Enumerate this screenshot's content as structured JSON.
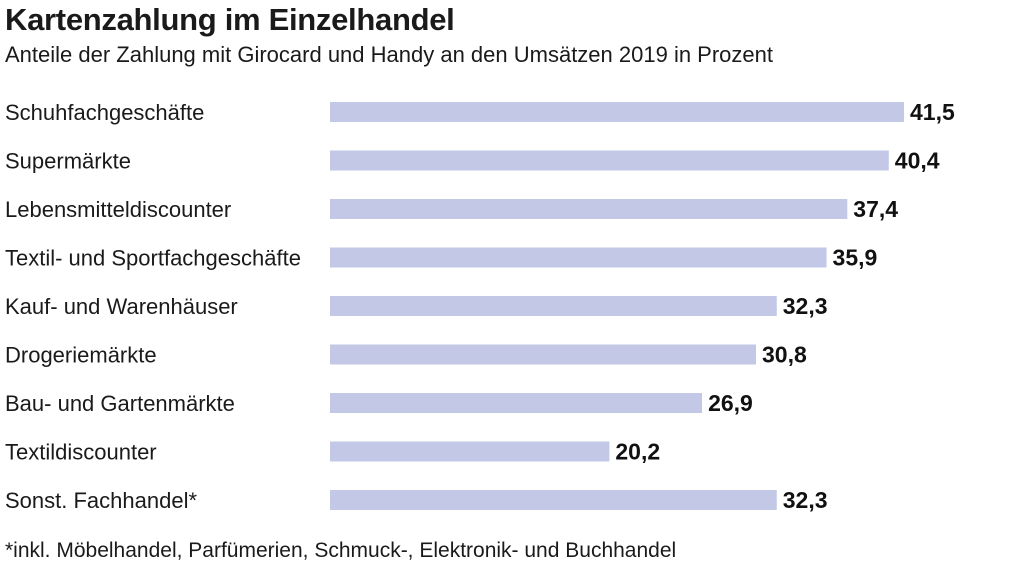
{
  "chart_data": {
    "type": "bar",
    "orientation": "horizontal",
    "title": "Kartenzahlung im Einzelhandel",
    "subtitle": "Anteile der Zahlung mit Girocard und Handy an den Umsätzen 2019 in Prozent",
    "categories": [
      "Schuhfachgeschäfte",
      "Supermärkte",
      "Lebensmitteldiscounter",
      "Textil- und Sportfachgeschäfte",
      "Kauf- und Warenhäuser",
      "Drogeriemärkte",
      "Bau- und Gartenmärkte",
      "Textildiscounter",
      "Sonst. Fachhandel*"
    ],
    "values": [
      41.5,
      40.4,
      37.4,
      35.9,
      32.3,
      30.8,
      26.9,
      20.2,
      32.3
    ],
    "value_labels": [
      "41,5",
      "40,4",
      "37,4",
      "35,9",
      "32,3",
      "30,8",
      "26,9",
      "20,2",
      "32,3"
    ],
    "xlim": [
      0,
      41.5
    ],
    "grid": false,
    "bar_color": "#c2c8e6",
    "footnote": "*inkl. Möbelhandel, Parfümerien, Schmuck-, Elektronik- und Buchhandel"
  }
}
